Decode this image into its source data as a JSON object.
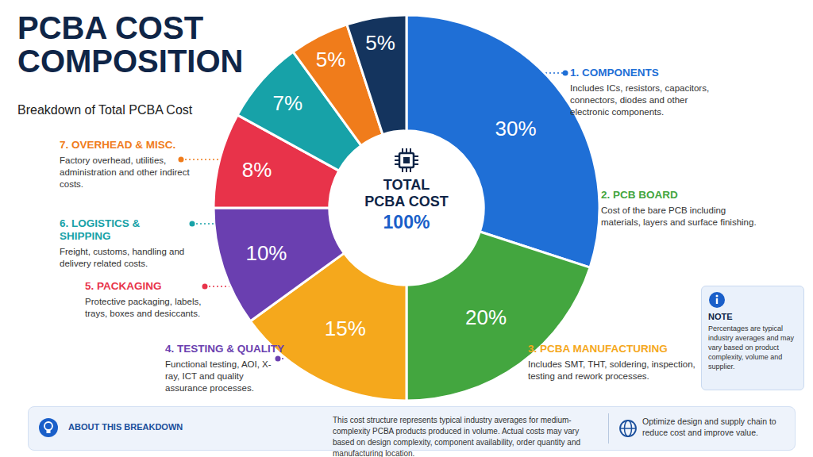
{
  "chart_data": {
    "type": "pie",
    "title": "PCBA COST COMPOSITION",
    "subtitle": "Breakdown of Total PCBA Cost",
    "categories": [
      "1. COMPONENTS",
      "2. PCB BOARD",
      "3. PCBA MANUFACTURING",
      "4. TESTING & QUALITY",
      "5. PACKAGING",
      "6. LOGISTICS & SHIPPING",
      "7. OVERHEAD & MISC.",
      null
    ],
    "descriptions": [
      "Includes ICs, resistors, capacitors, connectors, diodes and other electronic components.",
      "Cost of the bare PCB including materials, layers and surface finishing.",
      "Includes SMT, THT, soldering, inspection, testing and rework processes.",
      "Functional testing, AOI, X-ray, ICT and quality assurance processes.",
      "Protective packaging, labels, trays, boxes and desiccants.",
      "Freight, customs, handling and delivery related costs.",
      "Factory overhead, utilities, administration and other indirect costs.",
      null
    ],
    "values": [
      30,
      20,
      15,
      10,
      8,
      7,
      5,
      5
    ],
    "value_labels": [
      "30%",
      "20%",
      "15%",
      "10%",
      "8%",
      "7%",
      "5%",
      "5%"
    ],
    "colors": [
      "#1f6fd6",
      "#43a63f",
      "#f5a81c",
      "#6a3fb0",
      "#e8334a",
      "#17a2a8",
      "#f07c1b",
      "#14345e"
    ],
    "data_labels": true,
    "center_label": "TOTAL PCBA COST",
    "center_value": 100,
    "center_value_label": "100%"
  },
  "note": {
    "title": "NOTE",
    "text": "Percentages are typical industry averages and may vary based on product complexity, volume and supplier."
  },
  "footer": {
    "title": "ABOUT THIS BREAKDOWN",
    "text": "This cost structure represents typical industry averages for medium-complexity PCBA products produced in volume. Actual costs may vary based on design complexity, component availability, order quantity and manufacturing location.",
    "tip": "Optimize design and supply chain to reduce cost and improve value."
  }
}
